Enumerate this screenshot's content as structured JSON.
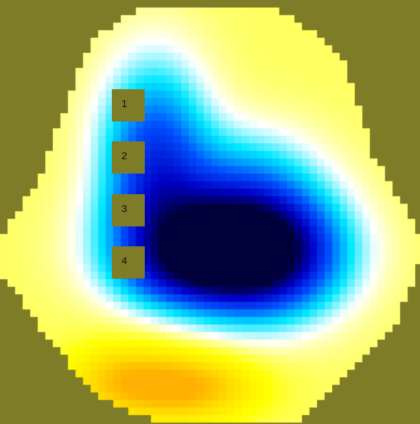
{
  "colors": {
    "background": "#7f7c27",
    "marker_fill": "#7f7c27",
    "marker_text": "#111111"
  },
  "colormap": [
    "#00003a",
    "#0000c8",
    "#0050ff",
    "#00e8ff",
    "#ffffff",
    "#ffff60",
    "#ffff00",
    "#ffe000",
    "#ffb000"
  ],
  "markers": [
    {
      "label": "1"
    },
    {
      "label": "2"
    },
    {
      "label": "3"
    },
    {
      "label": "4"
    }
  ]
}
